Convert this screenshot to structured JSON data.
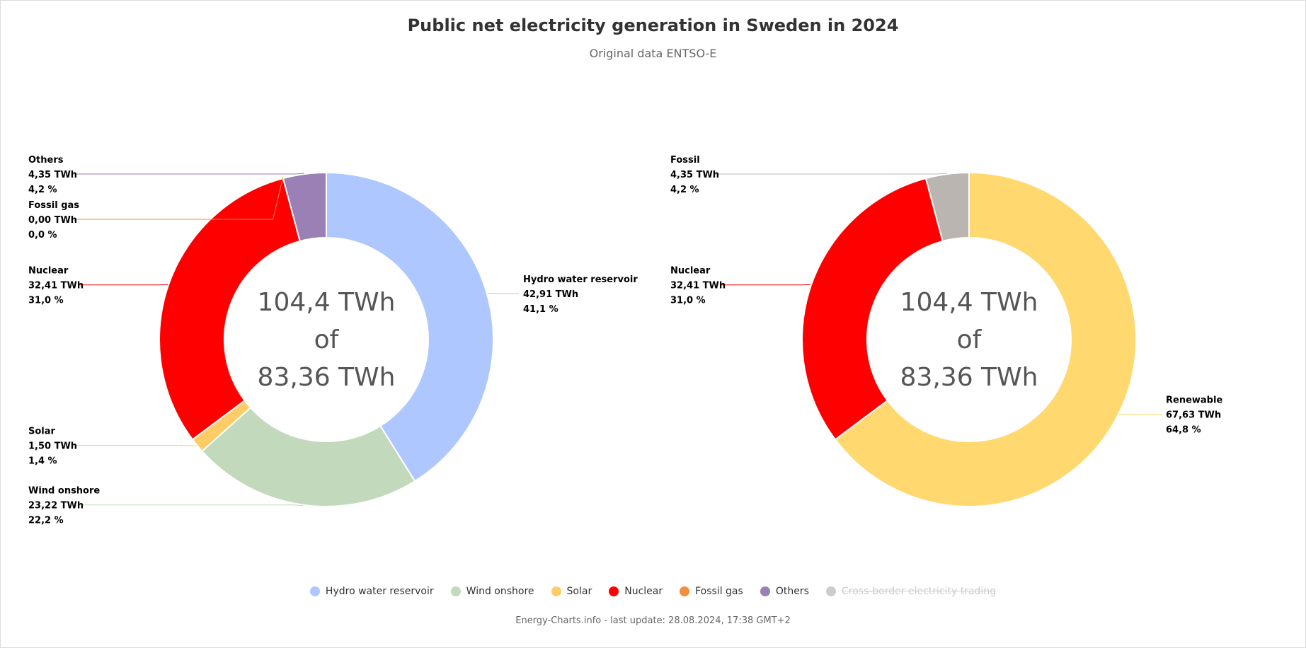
{
  "chart_data": [
    {
      "type": "pie",
      "variant": "donut",
      "title": "Public net electricity generation in Sweden in 2024",
      "subtitle": "Original data ENTSO-E",
      "center_label": [
        "104,4 TWh",
        "of",
        "83,36 TWh"
      ],
      "slices": [
        {
          "name": "Hydro water reservoir",
          "value": 42.91,
          "value_label": "42,91 TWh",
          "percent_label": "41,1 %",
          "color": "#aec7ff"
        },
        {
          "name": "Wind onshore",
          "value": 23.22,
          "value_label": "23,22 TWh",
          "percent_label": "22,2 %",
          "color": "#c3d9bb"
        },
        {
          "name": "Solar",
          "value": 1.5,
          "value_label": "1,50 TWh",
          "percent_label": "1,4 %",
          "color": "#ffcc66"
        },
        {
          "name": "Nuclear",
          "value": 32.41,
          "value_label": "32,41 TWh",
          "percent_label": "31,0 %",
          "color": "#ff0000"
        },
        {
          "name": "Fossil gas",
          "value": 0.0,
          "value_label": "0,00 TWh",
          "percent_label": "0,0 %",
          "color": "#f28e3c"
        },
        {
          "name": "Others",
          "value": 4.35,
          "value_label": "4,35 TWh",
          "percent_label": "4,2 %",
          "color": "#9a80b4"
        }
      ]
    },
    {
      "type": "pie",
      "variant": "donut",
      "title": "",
      "center_label": [
        "104,4 TWh",
        "of",
        "83,36 TWh"
      ],
      "slices": [
        {
          "name": "Renewable",
          "value": 67.63,
          "value_label": "67,63 TWh",
          "percent_label": "64,8 %",
          "color": "#ffd86f"
        },
        {
          "name": "Nuclear",
          "value": 32.41,
          "value_label": "32,41 TWh",
          "percent_label": "31,0 %",
          "color": "#ff0000"
        },
        {
          "name": "Fossil",
          "value": 4.35,
          "value_label": "4,35 TWh",
          "percent_label": "4,2 %",
          "color": "#bbb5b2"
        }
      ]
    }
  ],
  "legend": [
    {
      "label": "Hydro water reservoir",
      "color": "#aec7ff",
      "hidden": false
    },
    {
      "label": "Wind onshore",
      "color": "#c3d9bb",
      "hidden": false
    },
    {
      "label": "Solar",
      "color": "#ffcc66",
      "hidden": false
    },
    {
      "label": "Nuclear",
      "color": "#ff0000",
      "hidden": false
    },
    {
      "label": "Fossil gas",
      "color": "#f28e3c",
      "hidden": false
    },
    {
      "label": "Others",
      "color": "#9a80b4",
      "hidden": false
    },
    {
      "label": "Cross-border electricity trading",
      "color": "#bbbbbb",
      "hidden": true
    }
  ],
  "credits": "Energy-Charts.info - last update: 28.08.2024, 17:38 GMT+2"
}
